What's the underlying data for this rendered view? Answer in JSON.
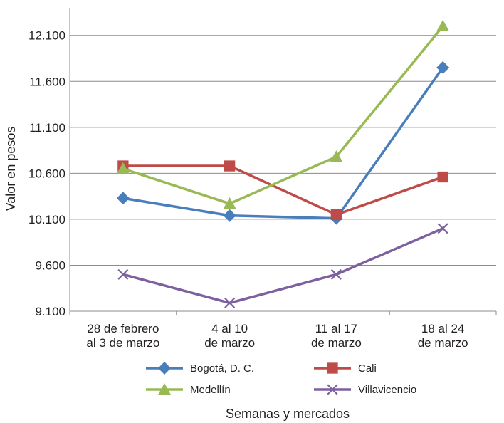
{
  "chart_data": {
    "type": "line",
    "title": "",
    "xlabel": "Semanas y mercados",
    "ylabel": "Valor en pesos",
    "categories": [
      [
        "28 de febrero",
        "al 3 de marzo"
      ],
      [
        "4 al 10",
        "de marzo"
      ],
      [
        "11 al 17",
        "de marzo"
      ],
      [
        "18 al 24",
        "de marzo"
      ]
    ],
    "ylim": [
      9100,
      12400
    ],
    "yticks": [
      9100,
      9600,
      10100,
      10600,
      11100,
      11600,
      12100
    ],
    "ytick_labels": [
      "9.100",
      "9.600",
      "10.100",
      "10.600",
      "11.100",
      "11.600",
      "12.100"
    ],
    "grid": true,
    "legend_position": "bottom",
    "series": [
      {
        "name": "Bogotá, D. C.",
        "color": "#4a7ebb",
        "marker": "diamond",
        "values": [
          10330,
          10140,
          10110,
          11750
        ]
      },
      {
        "name": "Cali",
        "color": "#be4b48",
        "marker": "square",
        "values": [
          10680,
          10680,
          10150,
          10560
        ]
      },
      {
        "name": "Medellín",
        "color": "#98b954",
        "marker": "triangle",
        "values": [
          10650,
          10270,
          10780,
          12200
        ]
      },
      {
        "name": "Villavicencio",
        "color": "#7d60a0",
        "marker": "x",
        "values": [
          9500,
          9190,
          9500,
          10000
        ]
      }
    ]
  }
}
